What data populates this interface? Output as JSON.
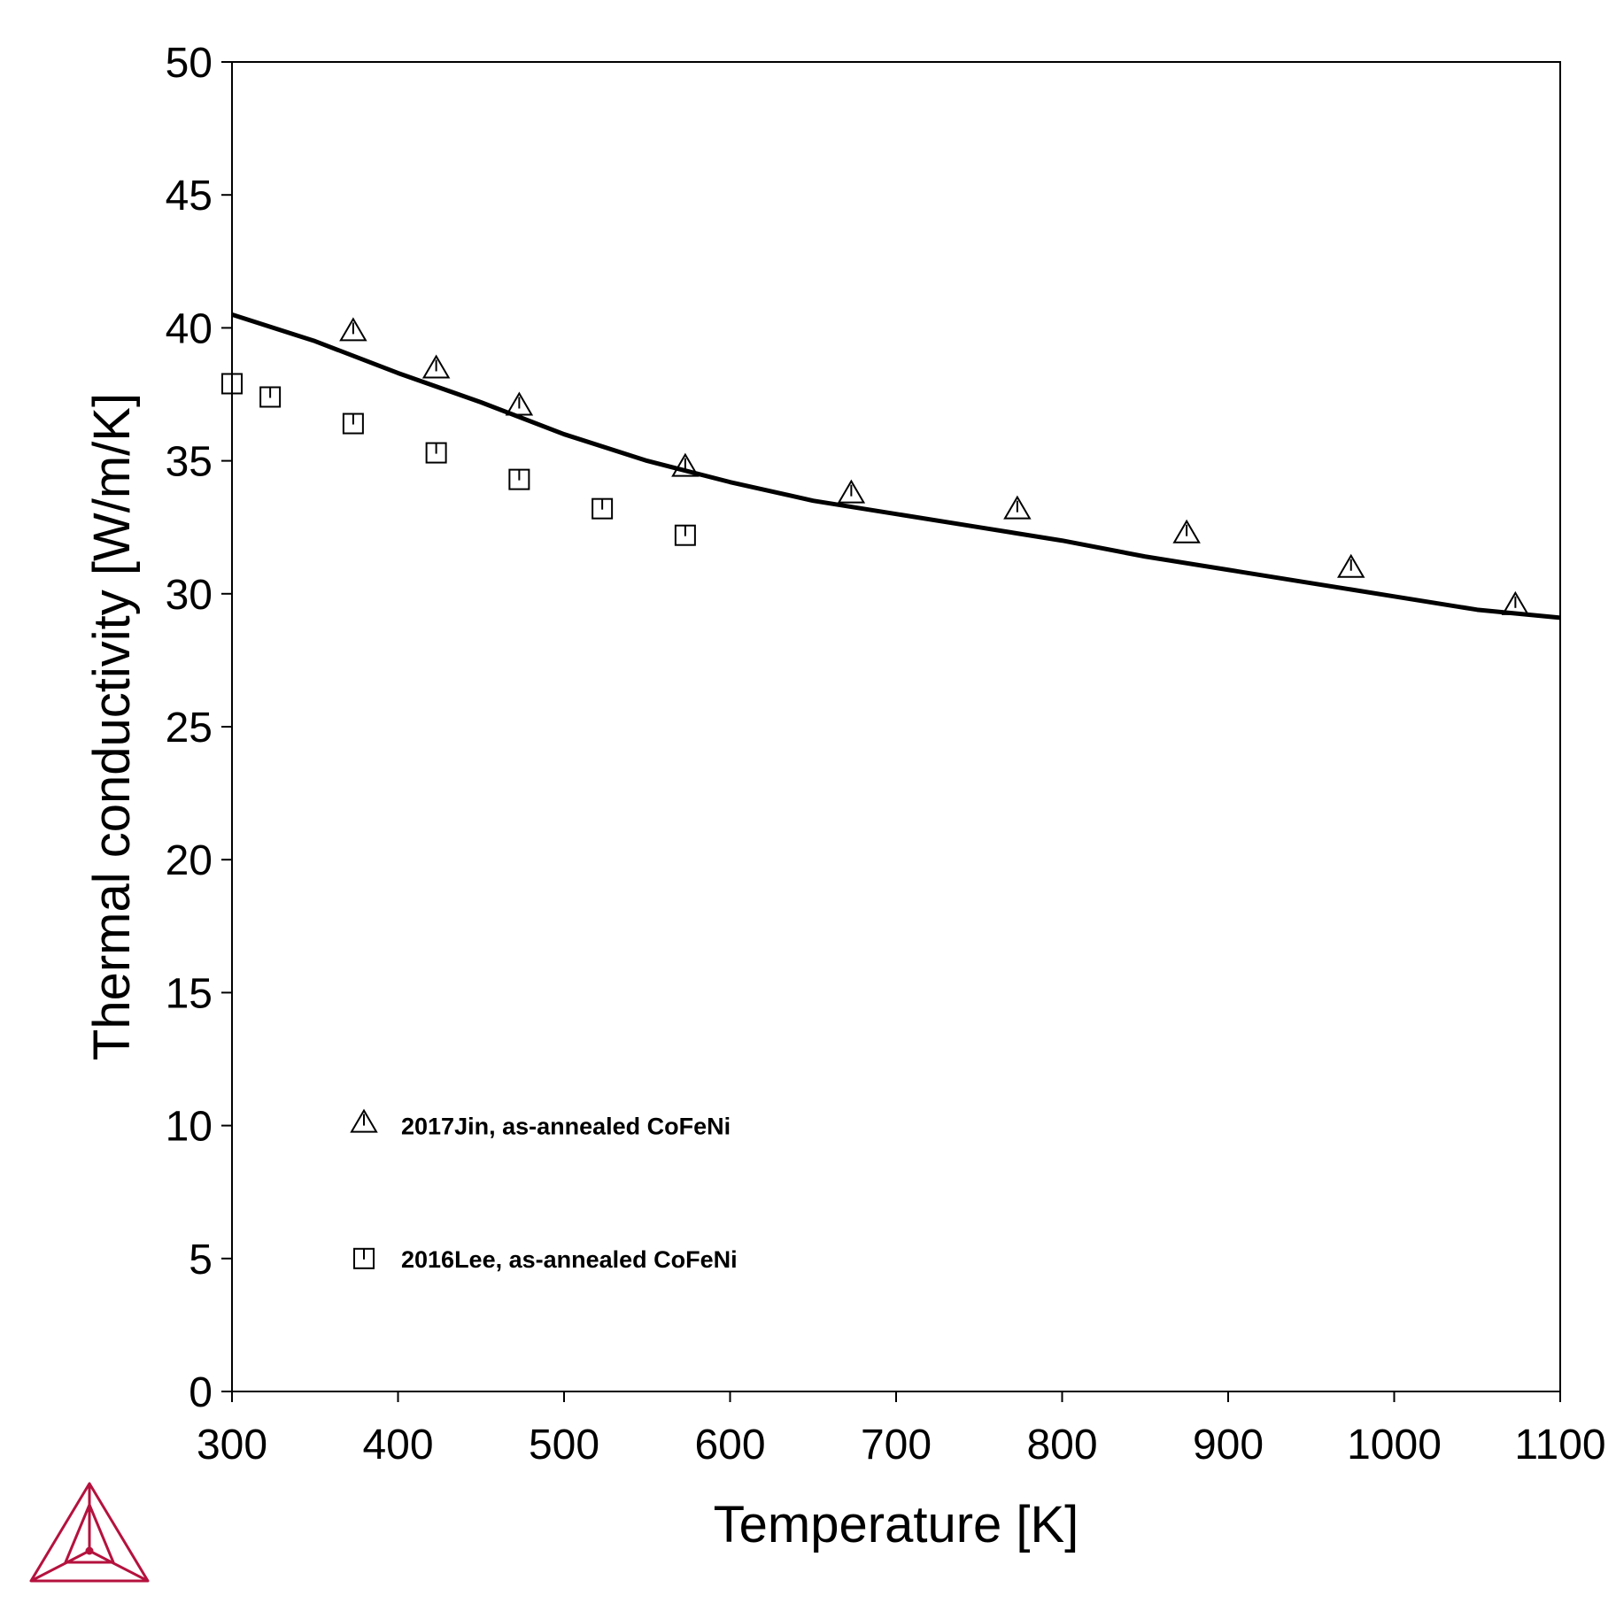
{
  "chart_data": {
    "type": "line",
    "title": "",
    "xlabel": "Temperature [K]",
    "ylabel": "Thermal conductivity [W/m/K]",
    "xlim": [
      300,
      1100
    ],
    "ylim": [
      0,
      50
    ],
    "x_ticks": [
      300,
      400,
      500,
      600,
      700,
      800,
      900,
      1000,
      1100
    ],
    "y_ticks": [
      0,
      5,
      10,
      15,
      20,
      25,
      30,
      35,
      40,
      45,
      50
    ],
    "grid": false,
    "legend_position": "bottom-left",
    "series": [
      {
        "style": "line",
        "color": "#000000",
        "x": [
          300,
          350,
          400,
          450,
          500,
          550,
          600,
          650,
          700,
          750,
          800,
          850,
          900,
          950,
          1000,
          1050,
          1100
        ],
        "y": [
          40.5,
          39.5,
          38.3,
          37.2,
          36.0,
          35.0,
          34.2,
          33.5,
          33.0,
          32.5,
          32.0,
          31.4,
          30.9,
          30.4,
          29.9,
          29.4,
          29.1
        ]
      },
      {
        "name": "2017Jin, as-annealed CoFeNi",
        "style": "markers",
        "marker": "triangle",
        "x": [
          373,
          423,
          473,
          573,
          673,
          773,
          875,
          974,
          1073
        ],
        "y": [
          39.9,
          38.5,
          37.1,
          34.8,
          33.8,
          33.2,
          32.3,
          31.0,
          29.6
        ]
      },
      {
        "name": "2016Lee, as-annealed CoFeNi",
        "style": "markers",
        "marker": "square",
        "x": [
          300,
          323,
          373,
          423,
          473,
          523,
          573
        ],
        "y": [
          37.9,
          37.4,
          36.4,
          35.3,
          34.3,
          33.2,
          32.2
        ]
      }
    ]
  },
  "logo": {
    "name": "thermo-calc-logo",
    "color": "#b5123e"
  }
}
